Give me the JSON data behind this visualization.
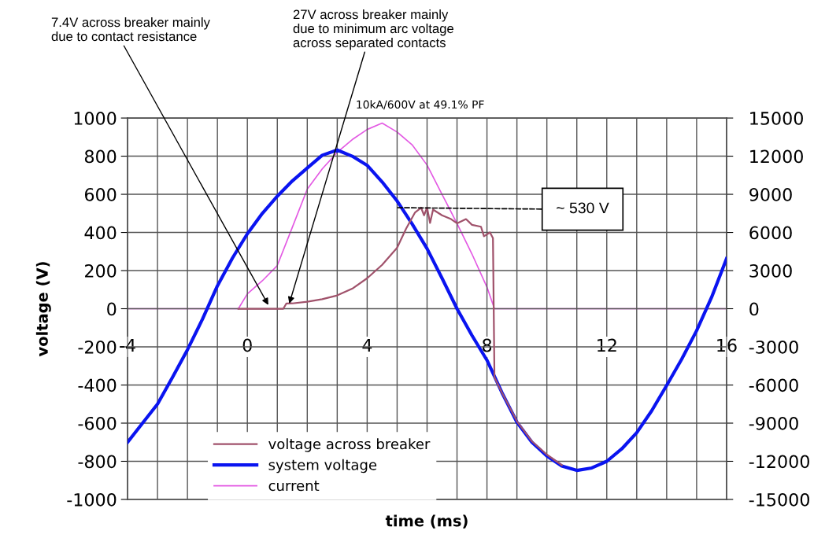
{
  "chart_data": {
    "type": "line",
    "title": "10kA/600V at 49.1% PF",
    "xlabel": "time (ms)",
    "ylabel": "voltage (V)",
    "xlim": [
      -4,
      16
    ],
    "xticks": [
      -4,
      {
        "value": -3,
        "label": null
      },
      {
        "value": -2,
        "label": null
      },
      {
        "value": -1,
        "label": null
      },
      0,
      {
        "value": 1,
        "label": null
      },
      {
        "value": 2,
        "label": null
      },
      {
        "value": 3,
        "label": null
      },
      4,
      {
        "value": 5,
        "label": null
      },
      {
        "value": 6,
        "label": null
      },
      {
        "value": 7,
        "label": null
      },
      8,
      {
        "value": 9,
        "label": null
      },
      {
        "value": 10,
        "label": null
      },
      {
        "value": 11,
        "label": null
      },
      12,
      {
        "value": 13,
        "label": null
      },
      {
        "value": 14,
        "label": null
      },
      {
        "value": 15,
        "label": null
      },
      16
    ],
    "ylim": [
      -1000,
      1000
    ],
    "yticks": [
      -1000,
      -800,
      -600,
      -400,
      -200,
      0,
      200,
      400,
      600,
      800,
      1000
    ],
    "y2lim": [
      -15000,
      15000
    ],
    "y2ticks": [
      -15000,
      -12000,
      -9000,
      -6000,
      -3000,
      0,
      3000,
      6000,
      9000,
      12000,
      15000
    ],
    "grid": true,
    "legend": "bottom",
    "marker": "none",
    "line_style": "solid",
    "series": [
      {
        "name": "voltage across breaker",
        "color": "#a0526b",
        "x": [
          -0.3,
          1.2,
          1.3,
          1.5,
          2,
          2.5,
          3,
          3.5,
          4,
          4.5,
          5,
          5.3,
          5.6,
          5.8,
          5.9,
          6.0,
          6.1,
          6.2,
          6.5,
          6.8,
          7.0,
          7.3,
          7.5,
          7.8,
          7.9,
          8.1,
          8.2,
          8.25,
          8.5,
          9,
          9.5,
          10,
          10.5
        ],
        "values": [
          0,
          0,
          27,
          28,
          37,
          50,
          70,
          105,
          160,
          230,
          320,
          420,
          505,
          530,
          490,
          530,
          450,
          520,
          490,
          470,
          448,
          470,
          440,
          430,
          380,
          400,
          370,
          -360,
          -440,
          -590,
          -695,
          -765,
          -820
        ]
      },
      {
        "name": "system voltage",
        "color": "#0a14f0",
        "x": [
          -4,
          -3.5,
          -3,
          -2.5,
          -2,
          -1.5,
          -1,
          -0.5,
          0,
          0.5,
          1,
          1.5,
          2,
          2.5,
          3,
          3.5,
          4,
          4.5,
          5,
          5.5,
          6,
          6.5,
          7,
          7.5,
          8,
          8.5,
          9,
          9.5,
          10,
          10.5,
          11,
          11.5,
          12,
          12.5,
          13,
          13.5,
          14,
          14.5,
          15,
          15.5,
          16
        ],
        "values": [
          -700,
          -600,
          -500,
          -360,
          -215,
          -55,
          120,
          265,
          393,
          500,
          590,
          670,
          738,
          805,
          832,
          800,
          752,
          665,
          565,
          445,
          315,
          160,
          0,
          -140,
          -270,
          -440,
          -595,
          -700,
          -772,
          -825,
          -848,
          -835,
          -800,
          -735,
          -650,
          -535,
          -402,
          -265,
          -115,
          60,
          263
        ]
      },
      {
        "name": "current",
        "color": "#e35ae3",
        "axis": "y2",
        "x": [
          -4,
          -0.3,
          0,
          0.5,
          1,
          1.5,
          2,
          2.5,
          3,
          3.5,
          4,
          4.5,
          5,
          5.5,
          6,
          6.5,
          7,
          7.5,
          8,
          8.25,
          16
        ],
        "values": [
          0,
          0,
          1170,
          2200,
          3400,
          6400,
          9400,
          11000,
          12300,
          13300,
          14100,
          14600,
          13900,
          12900,
          11300,
          9000,
          6700,
          4300,
          1700,
          0,
          0
        ]
      }
    ],
    "annotations": [
      {
        "text": "7.4V across breaker mainly\ndue to contact resistance",
        "x": 0.7,
        "y": 20
      },
      {
        "text": "27V across breaker mainly\ndue to minimum arc voltage\nacross separated contacts",
        "x": 1.4,
        "y": 27
      },
      {
        "text": "~ 530 V",
        "x": 5,
        "y": 530
      }
    ]
  }
}
